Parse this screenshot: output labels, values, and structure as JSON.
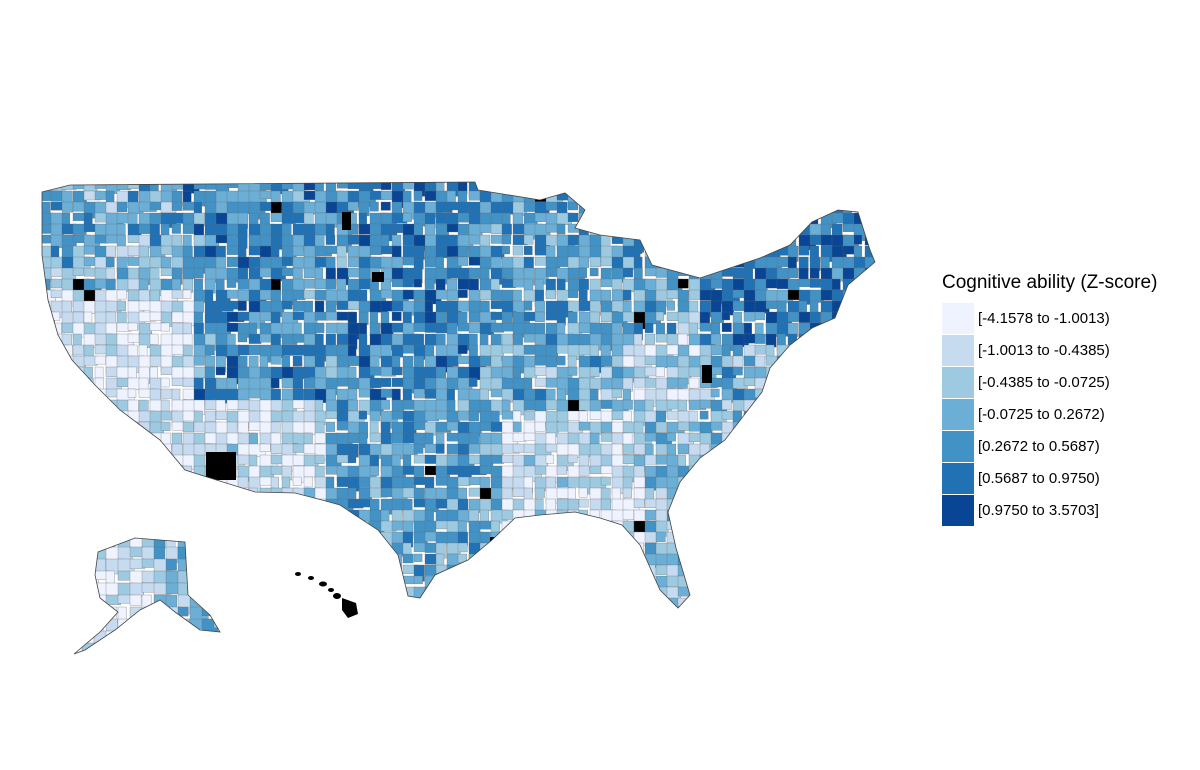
{
  "legend": {
    "title": "Cognitive ability (Z-score)",
    "items": [
      {
        "label": "[-4.1578 to -1.0013)",
        "color": "#eff3ff"
      },
      {
        "label": "[-1.0013 to -0.4385)",
        "color": "#c6dbef"
      },
      {
        "label": "[-0.4385 to -0.0725)",
        "color": "#9ecae1"
      },
      {
        "label": "[-0.0725 to 0.2672)",
        "color": "#6baed6"
      },
      {
        "label": "[0.2672 to 0.5687)",
        "color": "#4292c6"
      },
      {
        "label": "[0.5687 to 0.9750)",
        "color": "#2171b5"
      },
      {
        "label": "[0.9750 to 3.5703]",
        "color": "#084594"
      }
    ]
  },
  "map": {
    "regions": [
      "contiguous-us",
      "alaska",
      "hawaii"
    ],
    "missing_color": "#000000",
    "border_color": "#666666"
  }
}
